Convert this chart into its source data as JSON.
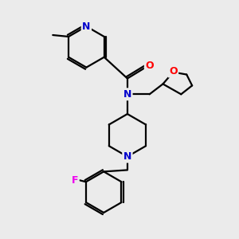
{
  "bg_color": "#ebebeb",
  "atom_colors": {
    "N": "#0000cc",
    "O": "#ff0000",
    "F": "#ee00ee",
    "C": "#000000"
  },
  "bond_color": "#000000",
  "bond_width": 1.6,
  "figsize": [
    3.0,
    3.0
  ],
  "dpi": 100
}
